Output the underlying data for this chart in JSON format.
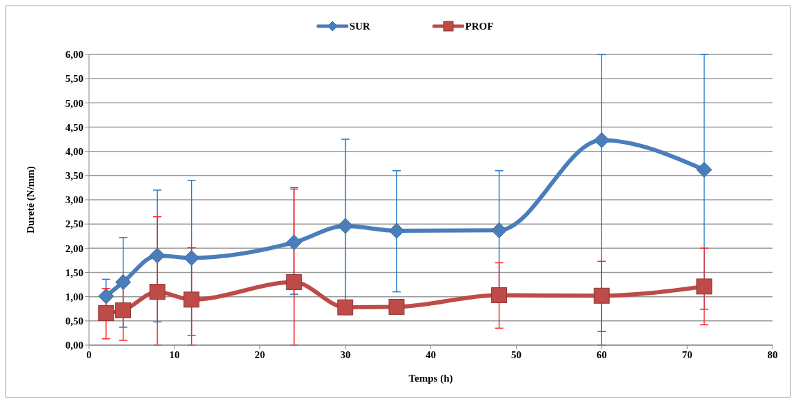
{
  "chart_data": {
    "type": "line",
    "xlabel": "Temps (h)",
    "ylabel": "Dureté (N/mm)",
    "x": [
      2,
      4,
      8,
      12,
      24,
      30,
      36,
      48,
      60,
      72
    ],
    "series": [
      {
        "name": "SUR",
        "color": "#4a7ebb",
        "marker": "diamond",
        "values": [
          1.01,
          1.3,
          1.85,
          1.8,
          2.12,
          2.46,
          2.36,
          2.37,
          4.23,
          3.62
        ],
        "errors": [
          0.35,
          [
            0.37,
            2.22
          ],
          [
            0.48,
            3.2
          ],
          [
            0.2,
            3.4
          ],
          [
            1.05,
            3.22
          ],
          [
            0.63,
            4.25
          ],
          [
            1.1,
            3.6
          ],
          1.23,
          [
            0,
            6
          ],
          [
            0.74,
            6
          ]
        ]
      },
      {
        "name": "PROF",
        "color": "#be4b48",
        "marker": "square",
        "values": [
          0.66,
          0.72,
          1.1,
          0.94,
          1.3,
          0.78,
          0.79,
          1.03,
          1.02,
          1.21
        ],
        "errors": [
          [
            0.13,
            1.17
          ],
          0.62,
          [
            0,
            2.65
          ],
          [
            0,
            2.01
          ],
          [
            0,
            3.25
          ],
          null,
          null,
          [
            0.35,
            1.7
          ],
          [
            0.28,
            1.73
          ],
          [
            0.42,
            2.0
          ]
        ]
      }
    ],
    "xlim": [
      0,
      80
    ],
    "xticks": [
      0,
      10,
      20,
      30,
      40,
      50,
      60,
      70,
      80
    ],
    "ylim": [
      0,
      6
    ],
    "yticks": [
      {
        "value": 0,
        "label": "0,00"
      },
      {
        "value": 0.5,
        "label": "0,50"
      },
      {
        "value": 1,
        "label": "1,00"
      },
      {
        "value": 1.5,
        "label": "1,50"
      },
      {
        "value": 2,
        "label": "2,00"
      },
      {
        "value": 2.5,
        "label": "2,50"
      },
      {
        "value": 3,
        "label": "3,00"
      },
      {
        "value": 3.5,
        "label": "3,50"
      },
      {
        "value": 4,
        "label": "4,00"
      },
      {
        "value": 4.5,
        "label": "4,50"
      },
      {
        "value": 5,
        "label": "5,00"
      },
      {
        "value": 5.5,
        "label": "5,50"
      },
      {
        "value": 6,
        "label": "6,00"
      }
    ],
    "grid": "y",
    "legend": "top"
  }
}
